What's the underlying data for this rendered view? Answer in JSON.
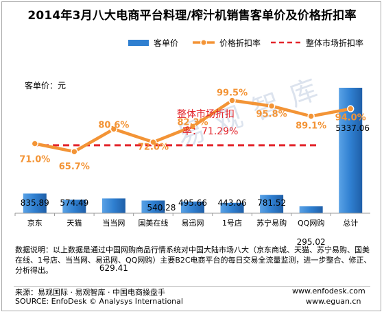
{
  "title": "2014年3月八大电商平台料理/榨汁机销售客单价及价格折扣率",
  "legend": {
    "bar": "客单价",
    "line": "价格折扣率",
    "dashed": "整体市场折扣率"
  },
  "unit_label": "客单价：元",
  "watermark": "易观智库",
  "colors": {
    "bar": "#2f7fd0",
    "line": "#f39436",
    "dashed": "#e3242b",
    "line_label": "#e3242b"
  },
  "chart_data": {
    "type": "bar",
    "categories": [
      "京东",
      "天猫",
      "当当网",
      "国美在线",
      "易迅网",
      "1号店",
      "苏宁易购",
      "QQ网购",
      "总计"
    ],
    "series": [
      {
        "name": "客单价",
        "type": "bar",
        "values": [
          835.89,
          574.49,
          629.41,
          540.28,
          495.66,
          443.06,
          781.52,
          295.02,
          5337.06
        ],
        "labels": [
          "835.89",
          "574.49",
          "629.41",
          "540.28",
          "495.66",
          "443.06",
          "781.52",
          "295.02",
          "5337.06"
        ]
      },
      {
        "name": "价格折扣率",
        "type": "line",
        "values": [
          71.0,
          65.7,
          80.6,
          72.0,
          82.3,
          99.5,
          95.8,
          89.1,
          94.0
        ],
        "labels": [
          "71.0%",
          "65.7%",
          "80.6%",
          "72.0%",
          "82.3%",
          "99.5%",
          "95.8%",
          "89.1%",
          "94.0%"
        ]
      }
    ],
    "reference_line": {
      "name": "整体市场折扣率",
      "value": 71.29,
      "label": "整体市场折扣率：71.29%"
    },
    "ylabel": "客单价：元",
    "grid": false,
    "legend_position": "top"
  },
  "note": "数据说明：以上数据是通过中国网购商品行情系统对中国大陆市场八大（京东商城、天猫、苏宁易购、国美在线、1号店、当当网、易迅网、QQ网购）主要B2C电商平台的每日交易全流量监测，进一步整合、修正、分析得出。",
  "source_cn": "来源：易观国际 · 易观智库 · 中国电商操盘手",
  "source_en": "SOURCE: EnfoDesk © Analysys International",
  "url1": "www.enfodesk.com",
  "url2": "www.eguan.cn"
}
